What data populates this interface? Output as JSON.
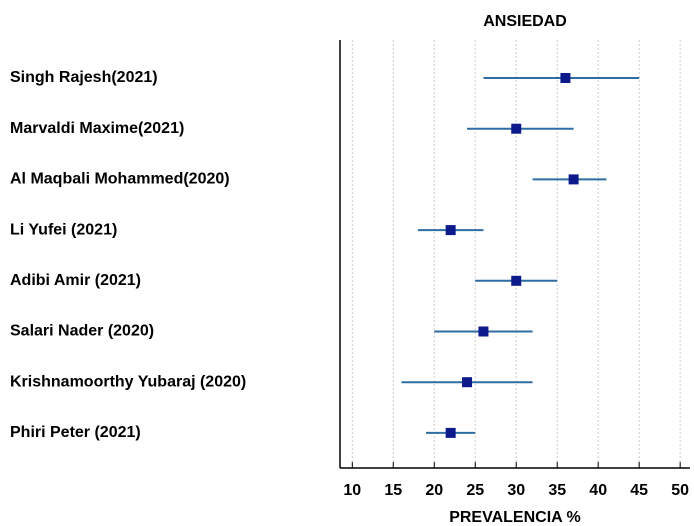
{
  "chart_data": {
    "type": "forest",
    "title": "ANSIEDAD",
    "x_label": "PREVALENCIA %",
    "categories": [
      "Singh Rajesh(2021)",
      "Marvaldi Maxime(2021)",
      "Al Maqbali Mohammed(2020)",
      "Li Yufei (2021)",
      "Adibi Amir (2021)",
      "Salari Nader (2020)",
      "Krishnamoorthy Yubaraj (2020)",
      "Phiri Peter (2021)"
    ],
    "values": [
      36,
      30,
      37,
      22,
      30,
      26,
      24,
      22
    ],
    "ci_low": [
      26,
      24,
      32,
      18,
      25,
      20,
      16,
      19
    ],
    "ci_high": [
      45,
      37,
      41,
      26,
      35,
      32,
      32,
      25
    ],
    "marker_color": "#0d1a8c",
    "line_color": "#2e6da4",
    "xlim": [
      8.5,
      51.2
    ],
    "xticks": [
      10,
      15,
      20,
      25,
      30,
      35,
      40,
      45,
      50
    ],
    "grid": true
  }
}
